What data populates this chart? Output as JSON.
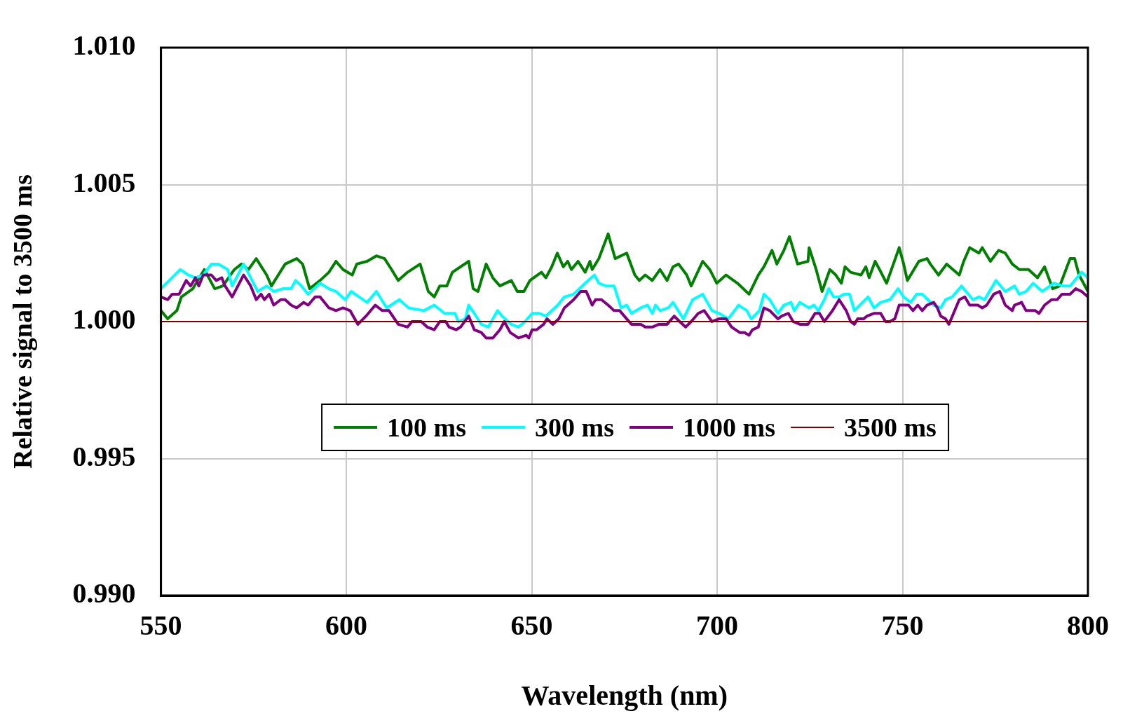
{
  "chart_data": {
    "type": "line",
    "xlabel": "Wavelength (nm)",
    "ylabel": "Relative signal to 3500 ms",
    "xlim": [
      550,
      800
    ],
    "xticks": [
      550,
      600,
      650,
      700,
      750,
      800
    ],
    "ylim": [
      0.99,
      1.01
    ],
    "yticks": [
      {
        "value": 0.99,
        "label": "0.990"
      },
      0.995,
      {
        "value": 1.0,
        "label": "1.000"
      },
      1.005,
      {
        "value": 1.01,
        "label": "1.010"
      }
    ],
    "grid": true,
    "legend": "bottom",
    "marker": "none",
    "line_style": "solid",
    "series": [
      {
        "name": "100 ms",
        "color": "#008000",
        "x": [
          550,
          551.8,
          554.3,
          555.5,
          558.6,
          561.7,
          564.5,
          566.7,
          569.8,
          571.7,
          573.6,
          575.7,
          578.5,
          579.8,
          583.5,
          586.6,
          588.2,
          590.1,
          592.9,
          595.3,
          597.2,
          599.1,
          601.6,
          602.8,
          605.6,
          608.1,
          610.3,
          612.2,
          614.0,
          616.5,
          619.9,
          622.1,
          623.7,
          625.2,
          627.1,
          628.6,
          633.0,
          634.2,
          635.5,
          637.7,
          639.5,
          641.4,
          644.5,
          646.1,
          647.9,
          649.5,
          652.6,
          653.8,
          655.4,
          656.9,
          658.5,
          659.7,
          660.7,
          662.5,
          664.4,
          665.7,
          666.3,
          668.1,
          670.6,
          672.5,
          675.6,
          677.8,
          679.0,
          680.6,
          682.5,
          684.6,
          686.5,
          688.1,
          689.6,
          691.8,
          693.0,
          696.1,
          698.0,
          699.9,
          702.4,
          705.5,
          708.6,
          711.1,
          712.6,
          714.8,
          716.1,
          718.0,
          719.5,
          721.7,
          724.5,
          724.8,
          726.7,
          728.3,
          730.4,
          732.0,
          733.5,
          734.5,
          736.0,
          738.8,
          740.1,
          741.0,
          742.6,
          743.8,
          745.7,
          749.1,
          750.3,
          751.3,
          754.4,
          756.6,
          757.5,
          759.7,
          761.9,
          765.3,
          766.5,
          768.1,
          770.6,
          771.5,
          773.7,
          775.9,
          777.7,
          779.6,
          781.5,
          784.0,
          786.4,
          788.3,
          790.5,
          792.4,
          795.2,
          796.4,
          797.6,
          800
        ],
        "values": [
          1.0004,
          1.0001,
          1.0004,
          1.0009,
          1.0012,
          1.0019,
          1.0012,
          1.0013,
          1.0019,
          1.0021,
          1.0019,
          1.0023,
          1.0017,
          1.0013,
          1.0021,
          1.0023,
          1.0021,
          1.0012,
          1.0015,
          1.0018,
          1.0022,
          1.0019,
          1.0017,
          1.0021,
          1.0022,
          1.0024,
          1.0023,
          1.0019,
          1.0015,
          1.0018,
          1.0021,
          1.0011,
          1.0009,
          1.0013,
          1.0013,
          1.0018,
          1.0022,
          1.0012,
          1.0011,
          1.0021,
          1.0016,
          1.0013,
          1.0015,
          1.0011,
          1.0011,
          1.0015,
          1.0018,
          1.0016,
          1.002,
          1.0025,
          1.002,
          1.0022,
          1.0019,
          1.0022,
          1.0018,
          1.0022,
          1.0019,
          1.0023,
          1.0032,
          1.0023,
          1.0025,
          1.0017,
          1.0015,
          1.0017,
          1.0015,
          1.0019,
          1.0015,
          1.002,
          1.0021,
          1.0017,
          1.0013,
          1.0022,
          1.0019,
          1.0014,
          1.0017,
          1.0014,
          1.001,
          1.0017,
          1.002,
          1.0026,
          1.0021,
          1.0026,
          1.0031,
          1.0021,
          1.0022,
          1.0027,
          1.0019,
          1.0011,
          1.0019,
          1.0017,
          1.0014,
          1.002,
          1.0018,
          1.0017,
          1.002,
          1.0016,
          1.0022,
          1.0019,
          1.0014,
          1.0027,
          1.0021,
          1.0015,
          1.0022,
          1.0023,
          1.0021,
          1.0017,
          1.0021,
          1.0017,
          1.0022,
          1.0027,
          1.0025,
          1.0027,
          1.0022,
          1.0026,
          1.0025,
          1.0021,
          1.0019,
          1.0019,
          1.0016,
          1.002,
          1.0012,
          1.0013,
          1.0023,
          1.0023,
          1.0017,
          1.0011
        ]
      },
      {
        "name": "300 ms",
        "color": "#00ffff",
        "x": [
          550,
          553.0,
          555.2,
          557.4,
          559.3,
          561.4,
          563.6,
          565.5,
          568.0,
          569.2,
          572.3,
          574.2,
          576.1,
          578.5,
          580.4,
          582.9,
          585.1,
          586.3,
          587.9,
          589.7,
          592.9,
          595.3,
          597.2,
          599.7,
          601.3,
          605.6,
          608.1,
          610.9,
          614.3,
          616.8,
          620.9,
          623.7,
          626.5,
          629.3,
          630.2,
          632.1,
          633.0,
          634.5,
          636.4,
          638.3,
          639.5,
          640.8,
          642.0,
          644.5,
          646.4,
          648.2,
          650.1,
          652.0,
          653.8,
          657.0,
          658.8,
          661.3,
          664.4,
          666.9,
          668.1,
          670.0,
          672.2,
          674.1,
          675.6,
          676.9,
          679.4,
          681.2,
          682.5,
          683.4,
          684.6,
          686.8,
          688.1,
          690.9,
          693.4,
          696.1,
          698.6,
          700.5,
          703.0,
          705.8,
          708.0,
          709.2,
          711.4,
          712.6,
          714.2,
          716.4,
          718.0,
          719.9,
          720.8,
          722.3,
          724.8,
          726.1,
          727.3,
          728.9,
          730.1,
          731.4,
          732.9,
          734.2,
          735.7,
          737.0,
          738.5,
          740.7,
          742.3,
          744.1,
          746.6,
          748.8,
          750.3,
          752.2,
          753.8,
          755.3,
          758.4,
          760.3,
          761.6,
          763.4,
          765.9,
          767.1,
          769.0,
          770.6,
          772.1,
          775.2,
          777.7,
          780.2,
          781.5,
          783.3,
          785.2,
          787.7,
          790.8,
          793.3,
          795.2,
          798.3,
          800
        ],
        "values": [
          1.0012,
          1.0016,
          1.0019,
          1.0017,
          1.0016,
          1.0017,
          1.0021,
          1.0021,
          1.0019,
          1.0013,
          1.0021,
          1.0016,
          1.0011,
          1.0013,
          1.0011,
          1.0012,
          1.0012,
          1.0015,
          1.0013,
          1.001,
          1.0014,
          1.0012,
          1.0011,
          1.0008,
          1.0011,
          1.0007,
          1.0011,
          1.0005,
          1.0008,
          1.0005,
          1.0004,
          1.0006,
          1.0003,
          1.0003,
          1.0,
          1.0001,
          1.0006,
          1.0003,
          0.9999,
          0.9998,
          1.0001,
          1.0004,
          1.0002,
          0.9999,
          0.9998,
          1.0,
          1.0003,
          1.0003,
          1.0002,
          1.0006,
          1.0009,
          1.001,
          1.0014,
          1.0017,
          1.0014,
          1.0013,
          1.0013,
          1.0005,
          1.0006,
          1.0003,
          1.0005,
          1.0006,
          1.0003,
          1.0006,
          1.0004,
          1.0005,
          1.0007,
          1.0001,
          1.0008,
          1.001,
          1.0004,
          1.0003,
          1.0001,
          1.0006,
          1.0004,
          1.0001,
          1.0004,
          1.001,
          1.0008,
          1.0003,
          1.0006,
          1.0007,
          1.0004,
          1.0007,
          1.0005,
          1.0006,
          1.0004,
          1.0008,
          1.0012,
          1.0009,
          1.0009,
          1.001,
          1.001,
          1.0004,
          1.0006,
          1.0009,
          1.0005,
          1.0007,
          1.0008,
          1.0012,
          1.0009,
          1.0007,
          1.001,
          1.001,
          1.0006,
          1.0005,
          1.0008,
          1.0009,
          1.0013,
          1.0011,
          1.0008,
          1.0009,
          1.0008,
          1.0015,
          1.0011,
          1.0013,
          1.001,
          1.0011,
          1.0014,
          1.0011,
          1.0014,
          1.0013,
          1.0013,
          1.0018,
          1.0016
        ]
      },
      {
        "name": "1000 ms",
        "color": "#800080",
        "x": [
          550,
          551.8,
          553.0,
          554.9,
          556.8,
          558.0,
          559.3,
          560.2,
          561.4,
          563.6,
          564.9,
          566.4,
          567.3,
          569.2,
          572.3,
          574.2,
          575.7,
          577.0,
          577.9,
          579.2,
          580.4,
          582.3,
          583.5,
          585.1,
          586.6,
          588.5,
          589.7,
          591.6,
          592.9,
          595.3,
          597.2,
          599.1,
          601.0,
          603.1,
          605.3,
          607.8,
          609.7,
          611.5,
          614.0,
          616.5,
          617.7,
          620.2,
          621.8,
          623.7,
          625.2,
          626.8,
          627.7,
          629.6,
          630.8,
          633.0,
          634.5,
          636.4,
          637.7,
          639.5,
          641.4,
          642.6,
          644.2,
          646.4,
          648.5,
          649.2,
          650.1,
          651.3,
          653.2,
          654.1,
          655.7,
          657.3,
          658.8,
          661.3,
          663.2,
          664.7,
          666.3,
          667.2,
          668.8,
          670.6,
          672.2,
          673.7,
          675.6,
          676.9,
          679.4,
          680.6,
          682.5,
          684.3,
          686.5,
          688.4,
          689.9,
          691.5,
          693.0,
          694.9,
          696.5,
          698.6,
          700.5,
          702.4,
          703.9,
          706.1,
          707.4,
          708.6,
          709.5,
          711.1,
          712.6,
          714.2,
          716.4,
          717.4,
          719.2,
          720.5,
          722.3,
          724.5,
          725.5,
          726.4,
          727.6,
          728.9,
          731.1,
          732.9,
          734.8,
          736.0,
          737.0,
          737.9,
          739.5,
          740.4,
          742.3,
          744.1,
          745.4,
          746.6,
          747.9,
          749.1,
          751.6,
          752.8,
          754.1,
          755.3,
          756.6,
          758.4,
          759.4,
          760.3,
          761.6,
          762.5,
          765.3,
          766.8,
          768.1,
          770.3,
          771.5,
          772.7,
          774.6,
          776.2,
          777.7,
          779.6,
          780.2,
          782.1,
          783.3,
          785.8,
          786.8,
          788.3,
          790.2,
          791.7,
          793.0,
          795.2,
          796.7,
          798.3,
          800
        ],
        "values": [
          1.0009,
          1.0008,
          1.001,
          1.001,
          1.0015,
          1.0013,
          1.0016,
          1.0013,
          1.0017,
          1.0017,
          1.0015,
          1.0016,
          1.0013,
          1.0009,
          1.0017,
          1.0013,
          1.0008,
          1.001,
          1.0008,
          1.001,
          1.0006,
          1.0008,
          1.0008,
          1.0006,
          1.0005,
          1.0007,
          1.0006,
          1.0009,
          1.0009,
          1.0005,
          1.0004,
          1.0005,
          1.0004,
          0.9999,
          1.0002,
          1.0006,
          1.0004,
          1.0004,
          0.9999,
          0.9998,
          1.0,
          1.0,
          0.9998,
          0.9997,
          1.0,
          1.0,
          0.9998,
          0.9997,
          0.9998,
          1.0002,
          0.9997,
          0.9996,
          0.9994,
          0.9994,
          0.9997,
          1.0,
          0.9996,
          0.9994,
          0.9995,
          0.9994,
          0.9997,
          0.9997,
          0.9999,
          1.0001,
          0.9999,
          1.0001,
          1.0005,
          1.0008,
          1.0011,
          1.0011,
          1.0006,
          1.0008,
          1.0008,
          1.0006,
          1.0004,
          1.0004,
          1.0001,
          0.9999,
          0.9999,
          0.9998,
          0.9998,
          0.9999,
          0.9999,
          1.0002,
          1.0,
          0.9998,
          1.0,
          1.0003,
          1.0004,
          1.0,
          1.0001,
          1.0001,
          0.9998,
          0.9996,
          0.9996,
          0.9995,
          0.9997,
          0.9998,
          1.0005,
          1.0004,
          1.0001,
          1.0002,
          1.0003,
          1.0,
          0.9999,
          0.9999,
          1.0001,
          1.0003,
          1.0003,
          1.0,
          1.0004,
          1.0008,
          1.0004,
          1.0,
          0.9999,
          1.0001,
          1.0001,
          1.0002,
          1.0003,
          1.0003,
          1.0,
          1.0,
          1.0001,
          1.0006,
          1.0006,
          1.0004,
          1.0006,
          1.0004,
          1.0006,
          1.0007,
          1.0005,
          1.0002,
          1.0001,
          0.9999,
          1.0008,
          1.0009,
          1.0006,
          1.0006,
          1.0005,
          1.0006,
          1.001,
          1.0011,
          1.0006,
          1.0004,
          1.0006,
          1.0007,
          1.0004,
          1.0004,
          1.0003,
          1.0006,
          1.0008,
          1.0008,
          1.001,
          1.001,
          1.0012,
          1.0011,
          1.0009
        ]
      },
      {
        "name": "3500 ms",
        "color": "#800000",
        "x": [
          550,
          800
        ],
        "values": [
          1.0,
          1.0
        ]
      }
    ]
  }
}
